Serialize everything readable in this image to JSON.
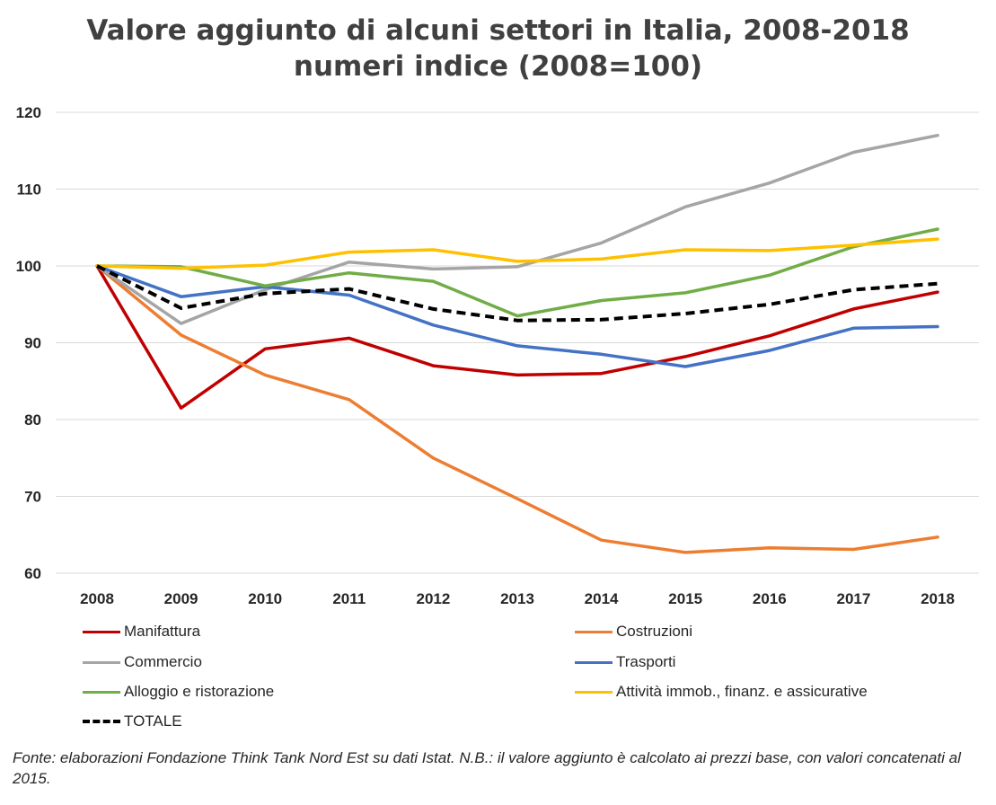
{
  "chart_data": {
    "type": "line",
    "title": "Valore aggiunto di alcuni settori in Italia, 2008-2018",
    "subtitle": "numeri indice (2008=100)",
    "xlabel": "",
    "ylabel": "",
    "categories": [
      "2008",
      "2009",
      "2010",
      "2011",
      "2012",
      "2013",
      "2014",
      "2015",
      "2016",
      "2017",
      "2018"
    ],
    "ylim": [
      60,
      120
    ],
    "yticks": [
      60,
      70,
      80,
      90,
      100,
      110,
      120
    ],
    "grid": true,
    "legend_position": "bottom",
    "series": [
      {
        "name": "Manifattura",
        "color": "#C00000",
        "dash": false,
        "values": [
          100,
          81.5,
          89.2,
          90.6,
          87.0,
          85.8,
          86.0,
          88.2,
          90.9,
          94.4,
          96.6
        ]
      },
      {
        "name": "Costruzioni",
        "color": "#ED7D31",
        "dash": false,
        "values": [
          100,
          91.0,
          85.8,
          82.6,
          75.0,
          69.7,
          64.3,
          62.7,
          63.3,
          63.1,
          64.7
        ]
      },
      {
        "name": "Commercio",
        "color": "#A5A5A5",
        "dash": false,
        "values": [
          100,
          92.5,
          96.9,
          100.5,
          99.6,
          99.9,
          103.0,
          107.7,
          110.8,
          114.8,
          117.0
        ]
      },
      {
        "name": "Trasporti",
        "color": "#4472C4",
        "dash": false,
        "values": [
          100,
          96.0,
          97.3,
          96.2,
          92.3,
          89.6,
          88.5,
          86.9,
          89.0,
          91.9,
          92.1
        ]
      },
      {
        "name": "Alloggio e ristorazione",
        "color": "#70AD47",
        "dash": false,
        "values": [
          100,
          99.9,
          97.4,
          99.1,
          98.0,
          93.5,
          95.5,
          96.5,
          98.8,
          102.5,
          104.8
        ]
      },
      {
        "name": "Attività immob., finanz. e assicurative",
        "color": "#FFC000",
        "dash": false,
        "values": [
          100,
          99.7,
          100.1,
          101.8,
          102.1,
          100.6,
          100.9,
          102.1,
          102.0,
          102.7,
          103.5
        ]
      },
      {
        "name": "TOTALE",
        "color": "#000000",
        "dash": true,
        "values": [
          100,
          94.5,
          96.4,
          97.0,
          94.4,
          92.9,
          93.0,
          93.8,
          95.0,
          96.9,
          97.7
        ]
      }
    ],
    "source_note": "Fonte: elaborazioni Fondazione Think Tank Nord Est su dati Istat. N.B.: il valore aggiunto è calcolato ai prezzi base, con valori concatenati al 2015."
  }
}
